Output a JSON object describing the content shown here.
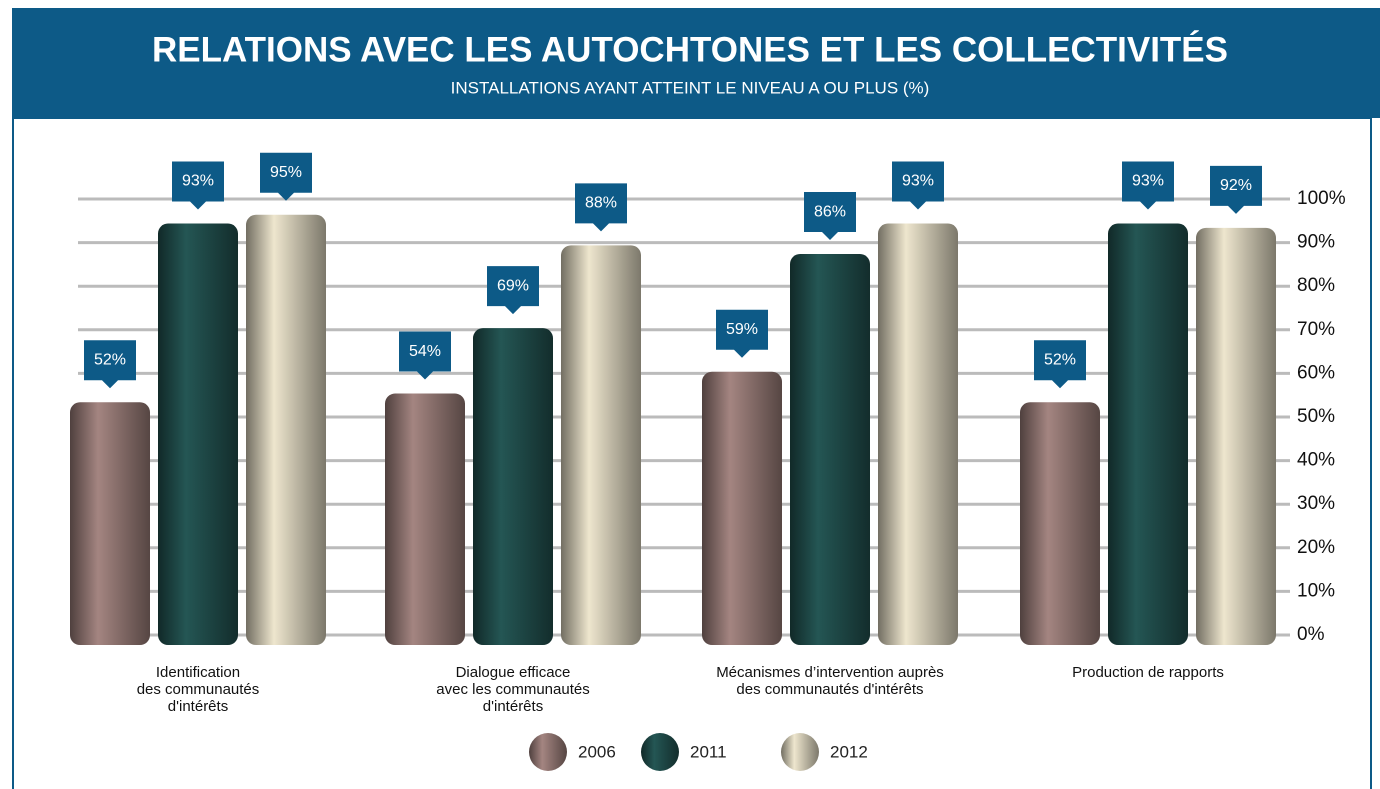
{
  "chart_data": {
    "type": "bar",
    "title": "RELATIONS AVEC LES AUTOCHTONES ET LES COLLECTIVITÉS",
    "subtitle": "INSTALLATIONS AYANT ATTEINT LE NIVEAU A OU PLUS (%)",
    "categories": [
      "Identification\ndes communautés\nd'intérêts",
      "Dialogue efficace\navec les communautés\nd'intérêts",
      "Mécanismes d’intervention auprès\ndes communautés d'intérêts",
      "Production de rapports"
    ],
    "series": [
      {
        "name": "2006",
        "color": "#8f7470",
        "values": [
          52,
          54,
          59,
          52
        ],
        "value_labels": [
          "52%",
          "54%",
          "59%",
          "52%"
        ]
      },
      {
        "name": "2011",
        "color": "#1f4b49",
        "values": [
          93,
          69,
          86,
          93
        ],
        "value_labels": [
          "93%",
          "69%",
          "86%",
          "93%"
        ]
      },
      {
        "name": "2012",
        "color": "#cfc8b3",
        "values": [
          95,
          88,
          93,
          92
        ],
        "value_labels": [
          "95%",
          "88%",
          "93%",
          "92%"
        ]
      }
    ],
    "ylim": [
      0,
      100
    ],
    "yticks": [
      {
        "value": 0,
        "label": "0%"
      },
      {
        "value": 10,
        "label": "10%"
      },
      {
        "value": 20,
        "label": "20%"
      },
      {
        "value": 30,
        "label": "30%"
      },
      {
        "value": 40,
        "label": "40%"
      },
      {
        "value": 50,
        "label": "50%"
      },
      {
        "value": 60,
        "label": "60%"
      },
      {
        "value": 70,
        "label": "70%"
      },
      {
        "value": 80,
        "label": "80%"
      },
      {
        "value": 90,
        "label": "90%"
      },
      {
        "value": 100,
        "label": "100%"
      }
    ],
    "grid": true
  }
}
